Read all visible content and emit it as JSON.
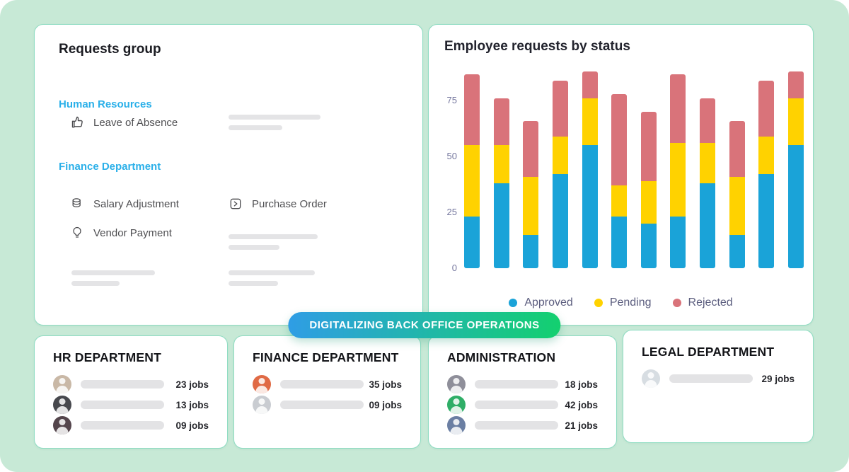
{
  "canvas": {
    "background": "#c7e9d6",
    "badge_label": "DIGITALIZING BACK OFFICE OPERATIONS",
    "badge_gradient": [
      "#2f9de5",
      "#13d06f"
    ]
  },
  "requests_card": {
    "title": "Requests group",
    "groups": [
      {
        "name": "Human Resources",
        "items": [
          {
            "icon": "thumbs-up-icon",
            "label": "Leave of Absence"
          }
        ]
      },
      {
        "name": "Finance Department",
        "items": [
          {
            "icon": "coins-icon",
            "label": "Salary Adjustment"
          },
          {
            "icon": "send-icon",
            "label": "Purchase Order"
          },
          {
            "icon": "lightbulb-icon",
            "label": "Vendor Payment"
          }
        ]
      }
    ]
  },
  "chart_card": {
    "title": "Employee requests by status"
  },
  "chart_data": {
    "type": "bar",
    "stacked": true,
    "title": "Employee requests by status",
    "bar_count": 12,
    "x_tick_labels_shown": false,
    "series": [
      {
        "name": "Approved",
        "color": "#1aa3d8",
        "values": [
          23,
          38,
          15,
          42,
          55,
          23,
          20,
          23,
          38,
          15,
          42,
          55
        ]
      },
      {
        "name": "Pending",
        "color": "#ffd200",
        "values": [
          32,
          17,
          26,
          17,
          21,
          14,
          19,
          33,
          18,
          26,
          17,
          21
        ]
      },
      {
        "name": "Rejected",
        "color": "#d9737a",
        "values": [
          32,
          21,
          25,
          25,
          12,
          41,
          31,
          31,
          20,
          25,
          25,
          12
        ]
      }
    ],
    "yticks": [
      0,
      25,
      50,
      75
    ],
    "ylim": [
      0,
      90
    ],
    "grid": false,
    "legend_position": "bottom-center"
  },
  "departments": [
    {
      "title": "HR DEPARTMENT",
      "rows": [
        {
          "jobs": "23 jobs",
          "avatar_color": "#c9b8a6"
        },
        {
          "jobs": "13 jobs",
          "avatar_color": "#47484d"
        },
        {
          "jobs": "09 jobs",
          "avatar_color": "#54454c"
        }
      ]
    },
    {
      "title": "FINANCE DEPARTMENT",
      "rows": [
        {
          "jobs": "35 jobs",
          "avatar_color": "#e06a45"
        },
        {
          "jobs": "09 jobs",
          "avatar_color": "#c9ccd1"
        }
      ]
    },
    {
      "title": "ADMINISTRATION",
      "rows": [
        {
          "jobs": "18 jobs",
          "avatar_color": "#8f8f9a"
        },
        {
          "jobs": "42 jobs",
          "avatar_color": "#2fae67"
        },
        {
          "jobs": "21 jobs",
          "avatar_color": "#6b7fa3"
        }
      ]
    },
    {
      "title": "LEGAL DEPARTMENT",
      "rows": [
        {
          "jobs": "29 jobs",
          "avatar_color": "#d7dde2"
        }
      ]
    }
  ]
}
